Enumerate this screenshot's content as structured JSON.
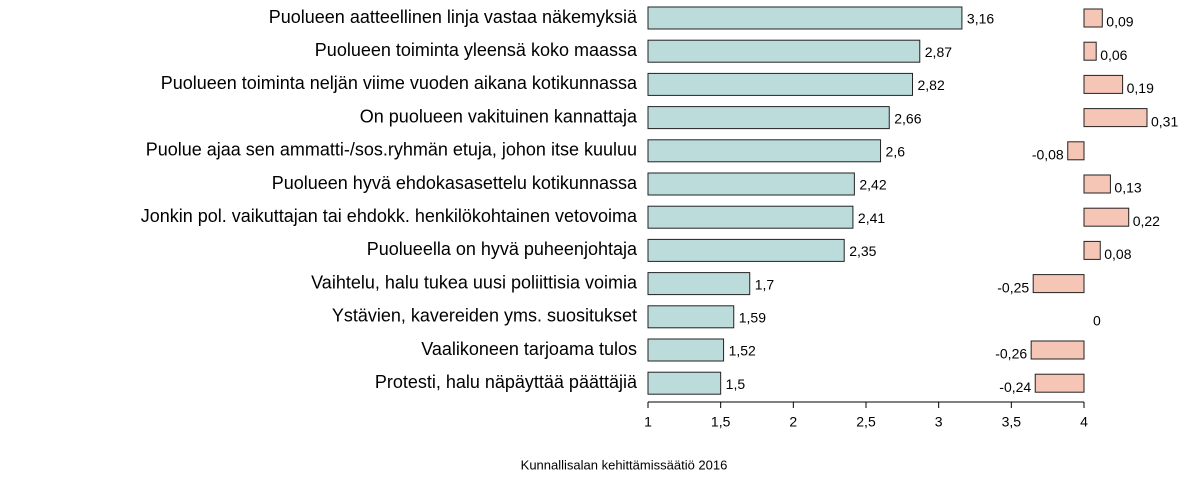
{
  "chart_data": {
    "type": "bar",
    "orientation": "horizontal",
    "categories": [
      "Puolueen aatteellinen linja vastaa näkemyksiä",
      "Puolueen toiminta yleensä koko maassa",
      "Puolueen toiminta neljän viime vuoden aikana kotikunnassa",
      "On puolueen vakituinen kannattaja",
      "Puolue ajaa sen ammatti-/sos.ryhmän etuja, johon itse kuuluu",
      "Puolueen hyvä ehdokasasettelu kotikunnassa",
      "Jonkin pol. vaikuttajan tai ehdokk. henkilökohtainen vetovoima",
      "Puolueella on hyvä puheenjohtaja",
      "Vaihtelu, halu tukea uusi poliittisia voimia",
      "Ystävien, kavereiden yms. suositukset",
      "Vaalikoneen tarjoama tulos",
      "Protesti, halu näpäyttää päättäjiä"
    ],
    "values": [
      3.16,
      2.87,
      2.82,
      2.66,
      2.6,
      2.42,
      2.41,
      2.35,
      1.7,
      1.59,
      1.52,
      1.5
    ],
    "value_labels": [
      "3,16",
      "2,87",
      "2,82",
      "2,66",
      "2,6",
      "2,42",
      "2,41",
      "2,35",
      "1,7",
      "1,59",
      "1,52",
      "1,5"
    ],
    "color": "#bcdcdc",
    "xlim": [
      1,
      4
    ],
    "xticks": [
      1,
      {
        "value": 1.5,
        "label": "1,5"
      },
      2,
      {
        "value": 2.5,
        "label": "2,5"
      },
      3,
      {
        "value": 3.5,
        "label": "3,5"
      },
      4
    ],
    "change": {
      "values": [
        0.09,
        0.06,
        0.19,
        0.31,
        -0.08,
        0.13,
        0.22,
        0.08,
        -0.25,
        0,
        -0.26,
        -0.24
      ],
      "value_labels": [
        "0,09",
        "0,06",
        "0,19",
        "0,31",
        "-0,08",
        "0,13",
        "0,22",
        "0,08",
        "-0,25",
        "0",
        "-0,26",
        "-0,24"
      ],
      "color": "#f5c5b5"
    },
    "source": "Kunnallisalan kehittämissäätiö 2016"
  }
}
